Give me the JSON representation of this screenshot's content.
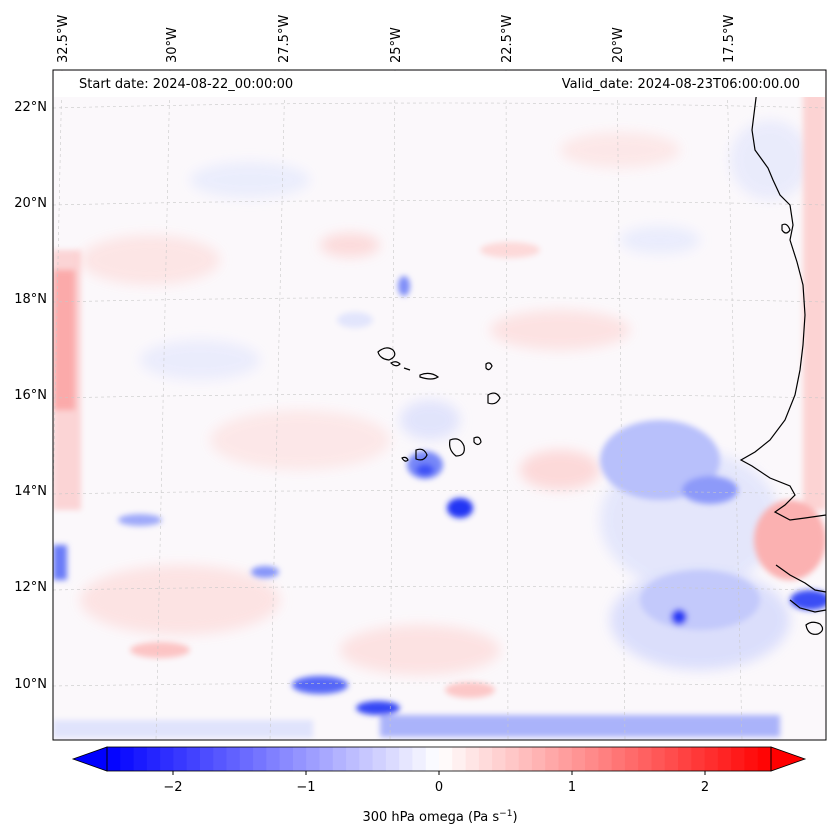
{
  "header": {
    "start_label": "Start date: 2024-08-22_00:00:00",
    "valid_label": "Valid_date: 2024-08-23T06:00:00.00"
  },
  "map": {
    "lon_labels": [
      "32.5°W",
      "30°W",
      "27.5°W",
      "25°W",
      "22.5°W",
      "20°W",
      "17.5°W"
    ],
    "lat_labels": [
      "22°N",
      "20°N",
      "18°N",
      "16°N",
      "14°N",
      "12°N",
      "10°N"
    ],
    "gridlines": true,
    "coastlines": true
  },
  "colorbar": {
    "cmap": "bwr",
    "vmin": -2.5,
    "vmax": 2.5,
    "extend": "both",
    "ticks": [
      "−2",
      "−1",
      "0",
      "1",
      "2"
    ],
    "label": "300 hPa omega (Pa s",
    "label_sup": "−1",
    "label_end": ")",
    "colors": {
      "min": "#0000ff",
      "mid": "#ffffff",
      "max": "#ff0000"
    }
  }
}
